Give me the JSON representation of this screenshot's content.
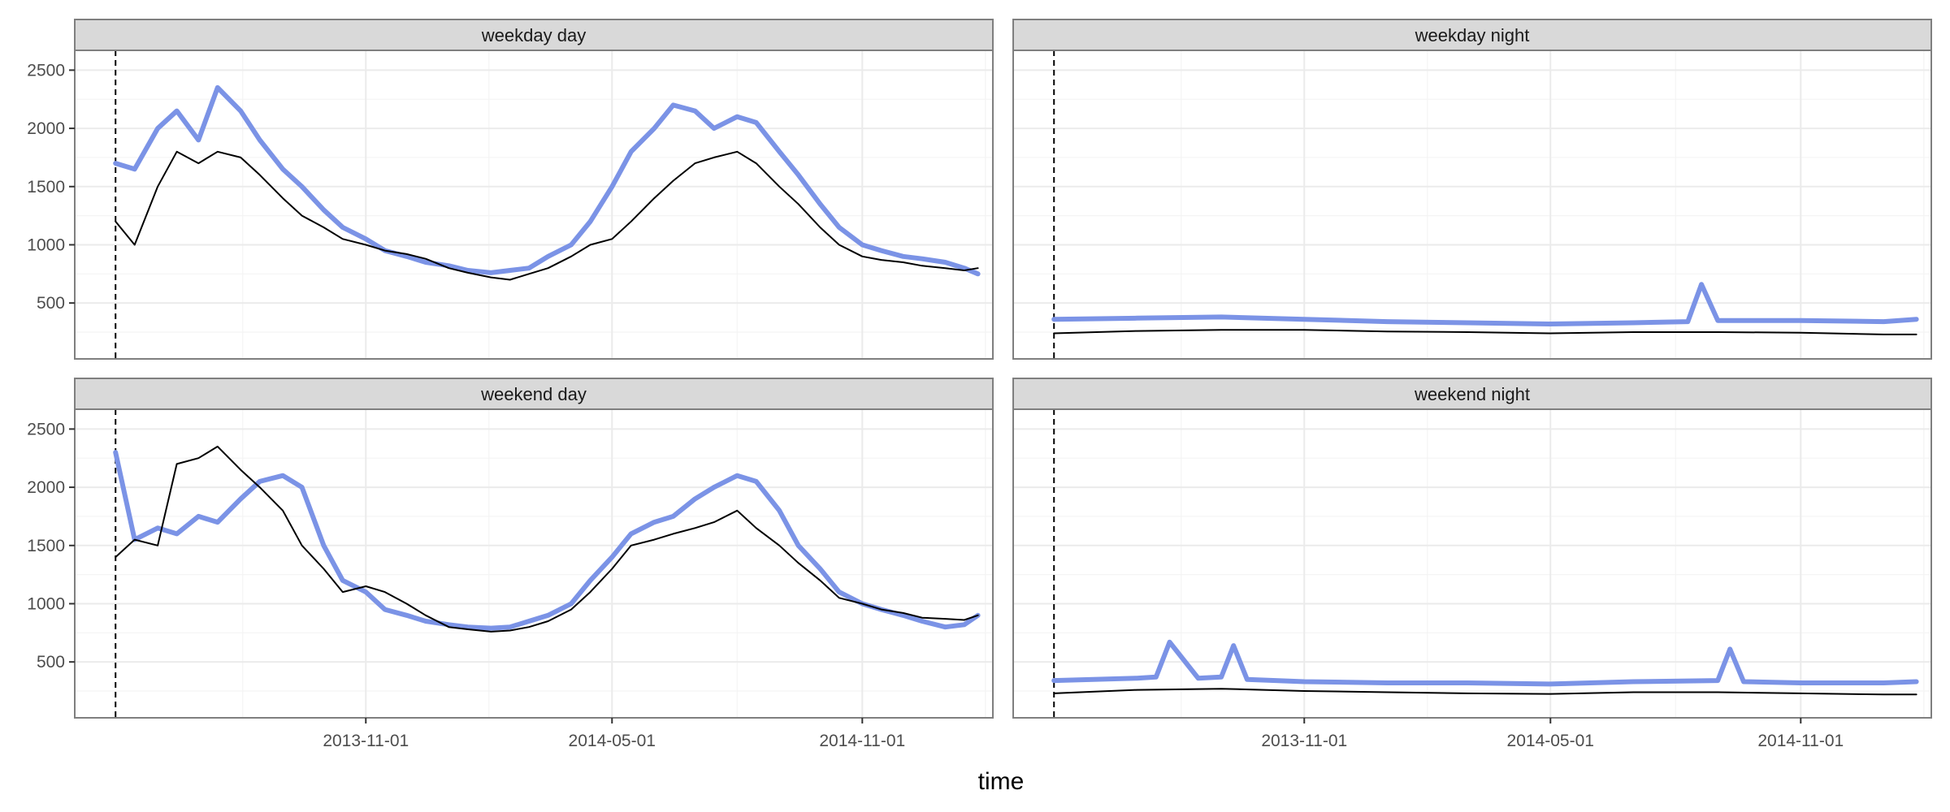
{
  "chart_data": {
    "type": "line",
    "xlabel": "time",
    "ylabel": "",
    "x_range": [
      "2013-04-01",
      "2015-02-05"
    ],
    "ylim": [
      20,
      2670
    ],
    "x_ticks": [
      {
        "date": "2013-11-01",
        "label": "2013-11-01"
      },
      {
        "date": "2014-05-01",
        "label": "2014-05-01"
      },
      {
        "date": "2014-11-01",
        "label": "2014-11-01"
      }
    ],
    "y_ticks": [
      500,
      1000,
      1500,
      2000,
      2500
    ],
    "vline_date": "2013-05-01",
    "grid": true,
    "legend": "none",
    "colors": {
      "blue": "#7b93e6",
      "black": "#000000",
      "strip": "#d9d9d9",
      "grid": "#ebebeb",
      "border": "#7f7f7f"
    },
    "panels": [
      {
        "label": "weekday day",
        "series": [
          {
            "color": "blue",
            "x": [
              "2013-05-01",
              "2013-05-15",
              "2013-06-01",
              "2013-06-15",
              "2013-07-01",
              "2013-07-15",
              "2013-08-01",
              "2013-08-15",
              "2013-09-01",
              "2013-09-15",
              "2013-10-01",
              "2013-10-15",
              "2013-11-01",
              "2013-11-15",
              "2013-12-01",
              "2013-12-15",
              "2014-01-01",
              "2014-01-15",
              "2014-02-01",
              "2014-02-15",
              "2014-03-01",
              "2014-03-15",
              "2014-04-01",
              "2014-04-15",
              "2014-05-01",
              "2014-05-15",
              "2014-06-01",
              "2014-06-15",
              "2014-07-01",
              "2014-07-15",
              "2014-08-01",
              "2014-08-15",
              "2014-09-01",
              "2014-09-15",
              "2014-10-01",
              "2014-10-15",
              "2014-11-01",
              "2014-11-15",
              "2014-12-01",
              "2014-12-15",
              "2015-01-01",
              "2015-01-15",
              "2015-01-25"
            ],
            "y": [
              1700,
              1650,
              2000,
              2150,
              1900,
              2350,
              2150,
              1900,
              1650,
              1500,
              1300,
              1150,
              1050,
              950,
              900,
              850,
              820,
              780,
              760,
              780,
              800,
              900,
              1000,
              1200,
              1500,
              1800,
              2000,
              2200,
              2150,
              2000,
              2100,
              2050,
              1800,
              1600,
              1350,
              1150,
              1000,
              950,
              900,
              880,
              850,
              800,
              750
            ]
          },
          {
            "color": "black",
            "x": [
              "2013-05-01",
              "2013-05-15",
              "2013-06-01",
              "2013-06-15",
              "2013-07-01",
              "2013-07-15",
              "2013-08-01",
              "2013-08-15",
              "2013-09-01",
              "2013-09-15",
              "2013-10-01",
              "2013-10-15",
              "2013-11-01",
              "2013-11-15",
              "2013-12-01",
              "2013-12-15",
              "2014-01-01",
              "2014-01-15",
              "2014-02-01",
              "2014-02-15",
              "2014-03-01",
              "2014-03-15",
              "2014-04-01",
              "2014-04-15",
              "2014-05-01",
              "2014-05-15",
              "2014-06-01",
              "2014-06-15",
              "2014-07-01",
              "2014-07-15",
              "2014-08-01",
              "2014-08-15",
              "2014-09-01",
              "2014-09-15",
              "2014-10-01",
              "2014-10-15",
              "2014-11-01",
              "2014-11-15",
              "2014-12-01",
              "2014-12-15",
              "2015-01-01",
              "2015-01-15",
              "2015-01-25"
            ],
            "y": [
              1200,
              1000,
              1500,
              1800,
              1700,
              1800,
              1750,
              1600,
              1400,
              1250,
              1150,
              1050,
              1000,
              950,
              920,
              880,
              800,
              760,
              720,
              700,
              750,
              800,
              900,
              1000,
              1050,
              1200,
              1400,
              1550,
              1700,
              1750,
              1800,
              1700,
              1500,
              1350,
              1150,
              1000,
              900,
              870,
              850,
              820,
              800,
              780,
              800
            ]
          }
        ]
      },
      {
        "label": "weekday night",
        "series": [
          {
            "color": "blue",
            "x": [
              "2013-05-01",
              "2013-07-01",
              "2013-09-01",
              "2013-11-01",
              "2014-01-01",
              "2014-03-01",
              "2014-05-01",
              "2014-07-01",
              "2014-08-10",
              "2014-08-20",
              "2014-09-01",
              "2014-11-01",
              "2015-01-01",
              "2015-01-25"
            ],
            "y": [
              360,
              370,
              380,
              360,
              340,
              330,
              320,
              330,
              340,
              660,
              350,
              350,
              340,
              360
            ]
          },
          {
            "color": "black",
            "x": [
              "2013-05-01",
              "2013-07-01",
              "2013-09-01",
              "2013-11-01",
              "2014-01-01",
              "2014-03-01",
              "2014-05-01",
              "2014-07-01",
              "2014-09-01",
              "2014-11-01",
              "2015-01-01",
              "2015-01-25"
            ],
            "y": [
              240,
              260,
              270,
              270,
              255,
              250,
              240,
              250,
              250,
              245,
              230,
              230
            ]
          }
        ]
      },
      {
        "label": "weekend day",
        "series": [
          {
            "color": "blue",
            "x": [
              "2013-05-01",
              "2013-05-15",
              "2013-06-01",
              "2013-06-15",
              "2013-07-01",
              "2013-07-15",
              "2013-08-01",
              "2013-08-15",
              "2013-09-01",
              "2013-09-15",
              "2013-10-01",
              "2013-10-15",
              "2013-11-01",
              "2013-11-15",
              "2013-12-01",
              "2013-12-15",
              "2014-01-01",
              "2014-01-15",
              "2014-02-01",
              "2014-02-15",
              "2014-03-01",
              "2014-03-15",
              "2014-04-01",
              "2014-04-15",
              "2014-05-01",
              "2014-05-15",
              "2014-06-01",
              "2014-06-15",
              "2014-07-01",
              "2014-07-15",
              "2014-08-01",
              "2014-08-15",
              "2014-09-01",
              "2014-09-15",
              "2014-10-01",
              "2014-10-15",
              "2014-11-01",
              "2014-11-15",
              "2014-12-01",
              "2014-12-15",
              "2015-01-01",
              "2015-01-15",
              "2015-01-25"
            ],
            "y": [
              2300,
              1550,
              1650,
              1600,
              1750,
              1700,
              1900,
              2050,
              2100,
              2000,
              1500,
              1200,
              1100,
              950,
              900,
              850,
              820,
              800,
              790,
              800,
              850,
              900,
              1000,
              1200,
              1400,
              1600,
              1700,
              1750,
              1900,
              2000,
              2100,
              2050,
              1800,
              1500,
              1300,
              1100,
              1000,
              950,
              900,
              850,
              800,
              820,
              900
            ]
          },
          {
            "color": "black",
            "x": [
              "2013-05-01",
              "2013-05-15",
              "2013-06-01",
              "2013-06-15",
              "2013-07-01",
              "2013-07-15",
              "2013-08-01",
              "2013-08-15",
              "2013-09-01",
              "2013-09-15",
              "2013-10-01",
              "2013-10-15",
              "2013-11-01",
              "2013-11-15",
              "2013-12-01",
              "2013-12-15",
              "2014-01-01",
              "2014-01-15",
              "2014-02-01",
              "2014-02-15",
              "2014-03-01",
              "2014-03-15",
              "2014-04-01",
              "2014-04-15",
              "2014-05-01",
              "2014-05-15",
              "2014-06-01",
              "2014-06-15",
              "2014-07-01",
              "2014-07-15",
              "2014-08-01",
              "2014-08-15",
              "2014-09-01",
              "2014-09-15",
              "2014-10-01",
              "2014-10-15",
              "2014-11-01",
              "2014-11-15",
              "2014-12-01",
              "2014-12-15",
              "2015-01-01",
              "2015-01-15",
              "2015-01-25"
            ],
            "y": [
              1400,
              1550,
              1500,
              2200,
              2250,
              2350,
              2150,
              2000,
              1800,
              1500,
              1300,
              1100,
              1150,
              1100,
              1000,
              900,
              800,
              780,
              760,
              770,
              800,
              850,
              950,
              1100,
              1300,
              1500,
              1550,
              1600,
              1650,
              1700,
              1800,
              1650,
              1500,
              1350,
              1200,
              1050,
              1000,
              950,
              920,
              880,
              870,
              860,
              900
            ]
          }
        ]
      },
      {
        "label": "weekend night",
        "series": [
          {
            "color": "blue",
            "x": [
              "2013-05-01",
              "2013-07-01",
              "2013-07-15",
              "2013-07-25",
              "2013-08-15",
              "2013-09-01",
              "2013-09-10",
              "2013-09-20",
              "2013-11-01",
              "2014-01-01",
              "2014-03-01",
              "2014-05-01",
              "2014-07-01",
              "2014-09-01",
              "2014-09-10",
              "2014-09-20",
              "2014-11-01",
              "2015-01-01",
              "2015-01-25"
            ],
            "y": [
              340,
              360,
              370,
              670,
              360,
              370,
              640,
              350,
              330,
              320,
              320,
              310,
              330,
              340,
              610,
              330,
              320,
              320,
              330
            ]
          },
          {
            "color": "black",
            "x": [
              "2013-05-01",
              "2013-07-01",
              "2013-09-01",
              "2013-11-01",
              "2014-01-01",
              "2014-03-01",
              "2014-05-01",
              "2014-07-01",
              "2014-09-01",
              "2014-11-01",
              "2015-01-01",
              "2015-01-25"
            ],
            "y": [
              230,
              260,
              270,
              250,
              240,
              230,
              225,
              240,
              240,
              230,
              220,
              220
            ]
          }
        ]
      }
    ]
  }
}
